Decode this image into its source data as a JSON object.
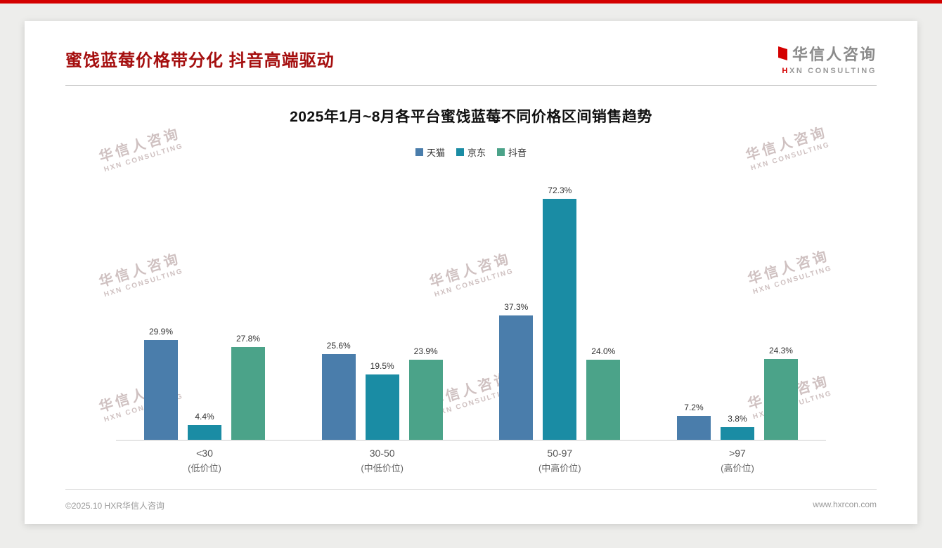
{
  "page": {
    "header": {
      "title": "蜜饯蓝莓价格带分化 抖音高端驱动",
      "logo": {
        "cn": "华信人咨询",
        "en": "HXN CONSULTING"
      }
    },
    "watermark": {
      "cn": "华信人咨询",
      "en": "HXN CONSULTING"
    },
    "footer": {
      "copyright": "©2025.10 HXR华信人咨询",
      "website": "www.hxrcon.com"
    }
  },
  "chart_data": {
    "type": "bar",
    "title": "2025年1月~8月各平台蜜饯蓝莓不同价格区间销售趋势",
    "categories": [
      {
        "range": "<30",
        "tier": "(低价位)"
      },
      {
        "range": "30-50",
        "tier": "(中低价位)"
      },
      {
        "range": "50-97",
        "tier": "(中高价位)"
      },
      {
        "range": ">97",
        "tier": "(高价位)"
      }
    ],
    "series": [
      {
        "name": "天猫",
        "color": "#4a7dab",
        "values": [
          29.9,
          25.6,
          37.3,
          7.2
        ]
      },
      {
        "name": "京东",
        "color": "#1a8ca4",
        "values": [
          4.4,
          19.5,
          72.3,
          3.8
        ]
      },
      {
        "name": "抖音",
        "color": "#4ba389",
        "values": [
          27.8,
          23.9,
          24.0,
          24.3
        ]
      }
    ],
    "value_suffix": "%",
    "ylim": [
      0,
      80
    ],
    "grid": false,
    "legend_position": "top"
  }
}
